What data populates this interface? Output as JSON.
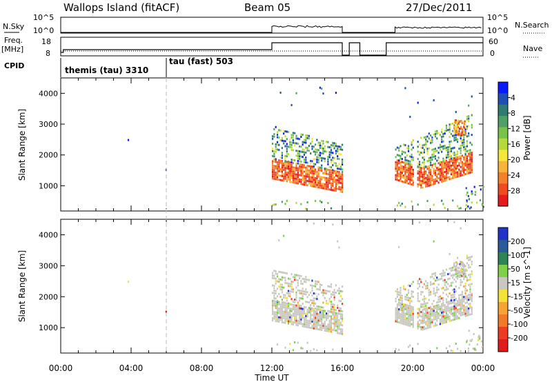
{
  "header": {
    "station": "Wallops Island (fitACF)",
    "beam": "Beam 05",
    "date": "27/Dec/2011"
  },
  "top_panels": {
    "nsky_label": "N.Sky",
    "nsky_ticks": [
      "10^5",
      "10^0"
    ],
    "nsky_right_ticks": [
      "10^5",
      "10^0"
    ],
    "nsearch_label": "N.Search",
    "freq_label_1": "Freq.",
    "freq_label_2": "[MHz]",
    "freq_ticks": [
      "18",
      "8"
    ],
    "nave_ticks": [
      "60",
      "0"
    ],
    "nave_label": "Nave",
    "cpid_label": "CPID",
    "cpid_entries": [
      {
        "text": "themis (tau) 3310",
        "start_hour": 0
      },
      {
        "text": "tau (fast) 503",
        "start_hour": 6.0
      }
    ]
  },
  "chart_data": [
    {
      "type": "heatmap",
      "title": "Power",
      "xlabel": "Time UT",
      "ylabel": "Slant Range [km]",
      "xlim_hours": [
        0,
        24
      ],
      "ylim": [
        180,
        4500
      ],
      "y_ticks": [
        1000,
        2000,
        3000,
        4000
      ],
      "colorbar": {
        "label": "Power [dB]",
        "ticks": [
          "4",
          "8",
          "12",
          "16",
          "20",
          "24",
          "28"
        ],
        "colors": [
          "#0a1aff",
          "#1f4fb5",
          "#2f7a72",
          "#4fa064",
          "#77c34a",
          "#b7d93a",
          "#f5e63a",
          "#f7b43a",
          "#f3812a",
          "#ef4a22",
          "#e71b1b"
        ]
      },
      "echo_regions": [
        {
          "start_hour": 12.0,
          "end_hour": 16.0,
          "range_km": [
            900,
            3000
          ]
        },
        {
          "start_hour": 19.0,
          "end_hour": 23.4,
          "range_km": [
            1000,
            3100
          ]
        }
      ]
    },
    {
      "type": "heatmap",
      "title": "Velocity",
      "xlabel": "Time UT",
      "ylabel": "Slant Range [km]",
      "xlim_hours": [
        0,
        24
      ],
      "ylim": [
        180,
        4500
      ],
      "y_ticks": [
        1000,
        2000,
        3000,
        4000
      ],
      "colorbar": {
        "label": "Velocity [m s^-1]",
        "ticks": [
          "200",
          "100",
          "50",
          "15",
          "-15",
          "-50",
          "-100",
          "-200"
        ],
        "colors": [
          "#2233c8",
          "#2a5a9a",
          "#2f8456",
          "#7fd14a",
          "#c8c8c0",
          "#f2e23a",
          "#f5a435",
          "#f07a28",
          "#ee3c22",
          "#e01b1b"
        ]
      }
    }
  ],
  "time_axis": {
    "ticks": [
      "00:00",
      "04:00",
      "08:00",
      "12:00",
      "16:00",
      "20:00",
      "00:00"
    ],
    "label": "Time UT"
  }
}
